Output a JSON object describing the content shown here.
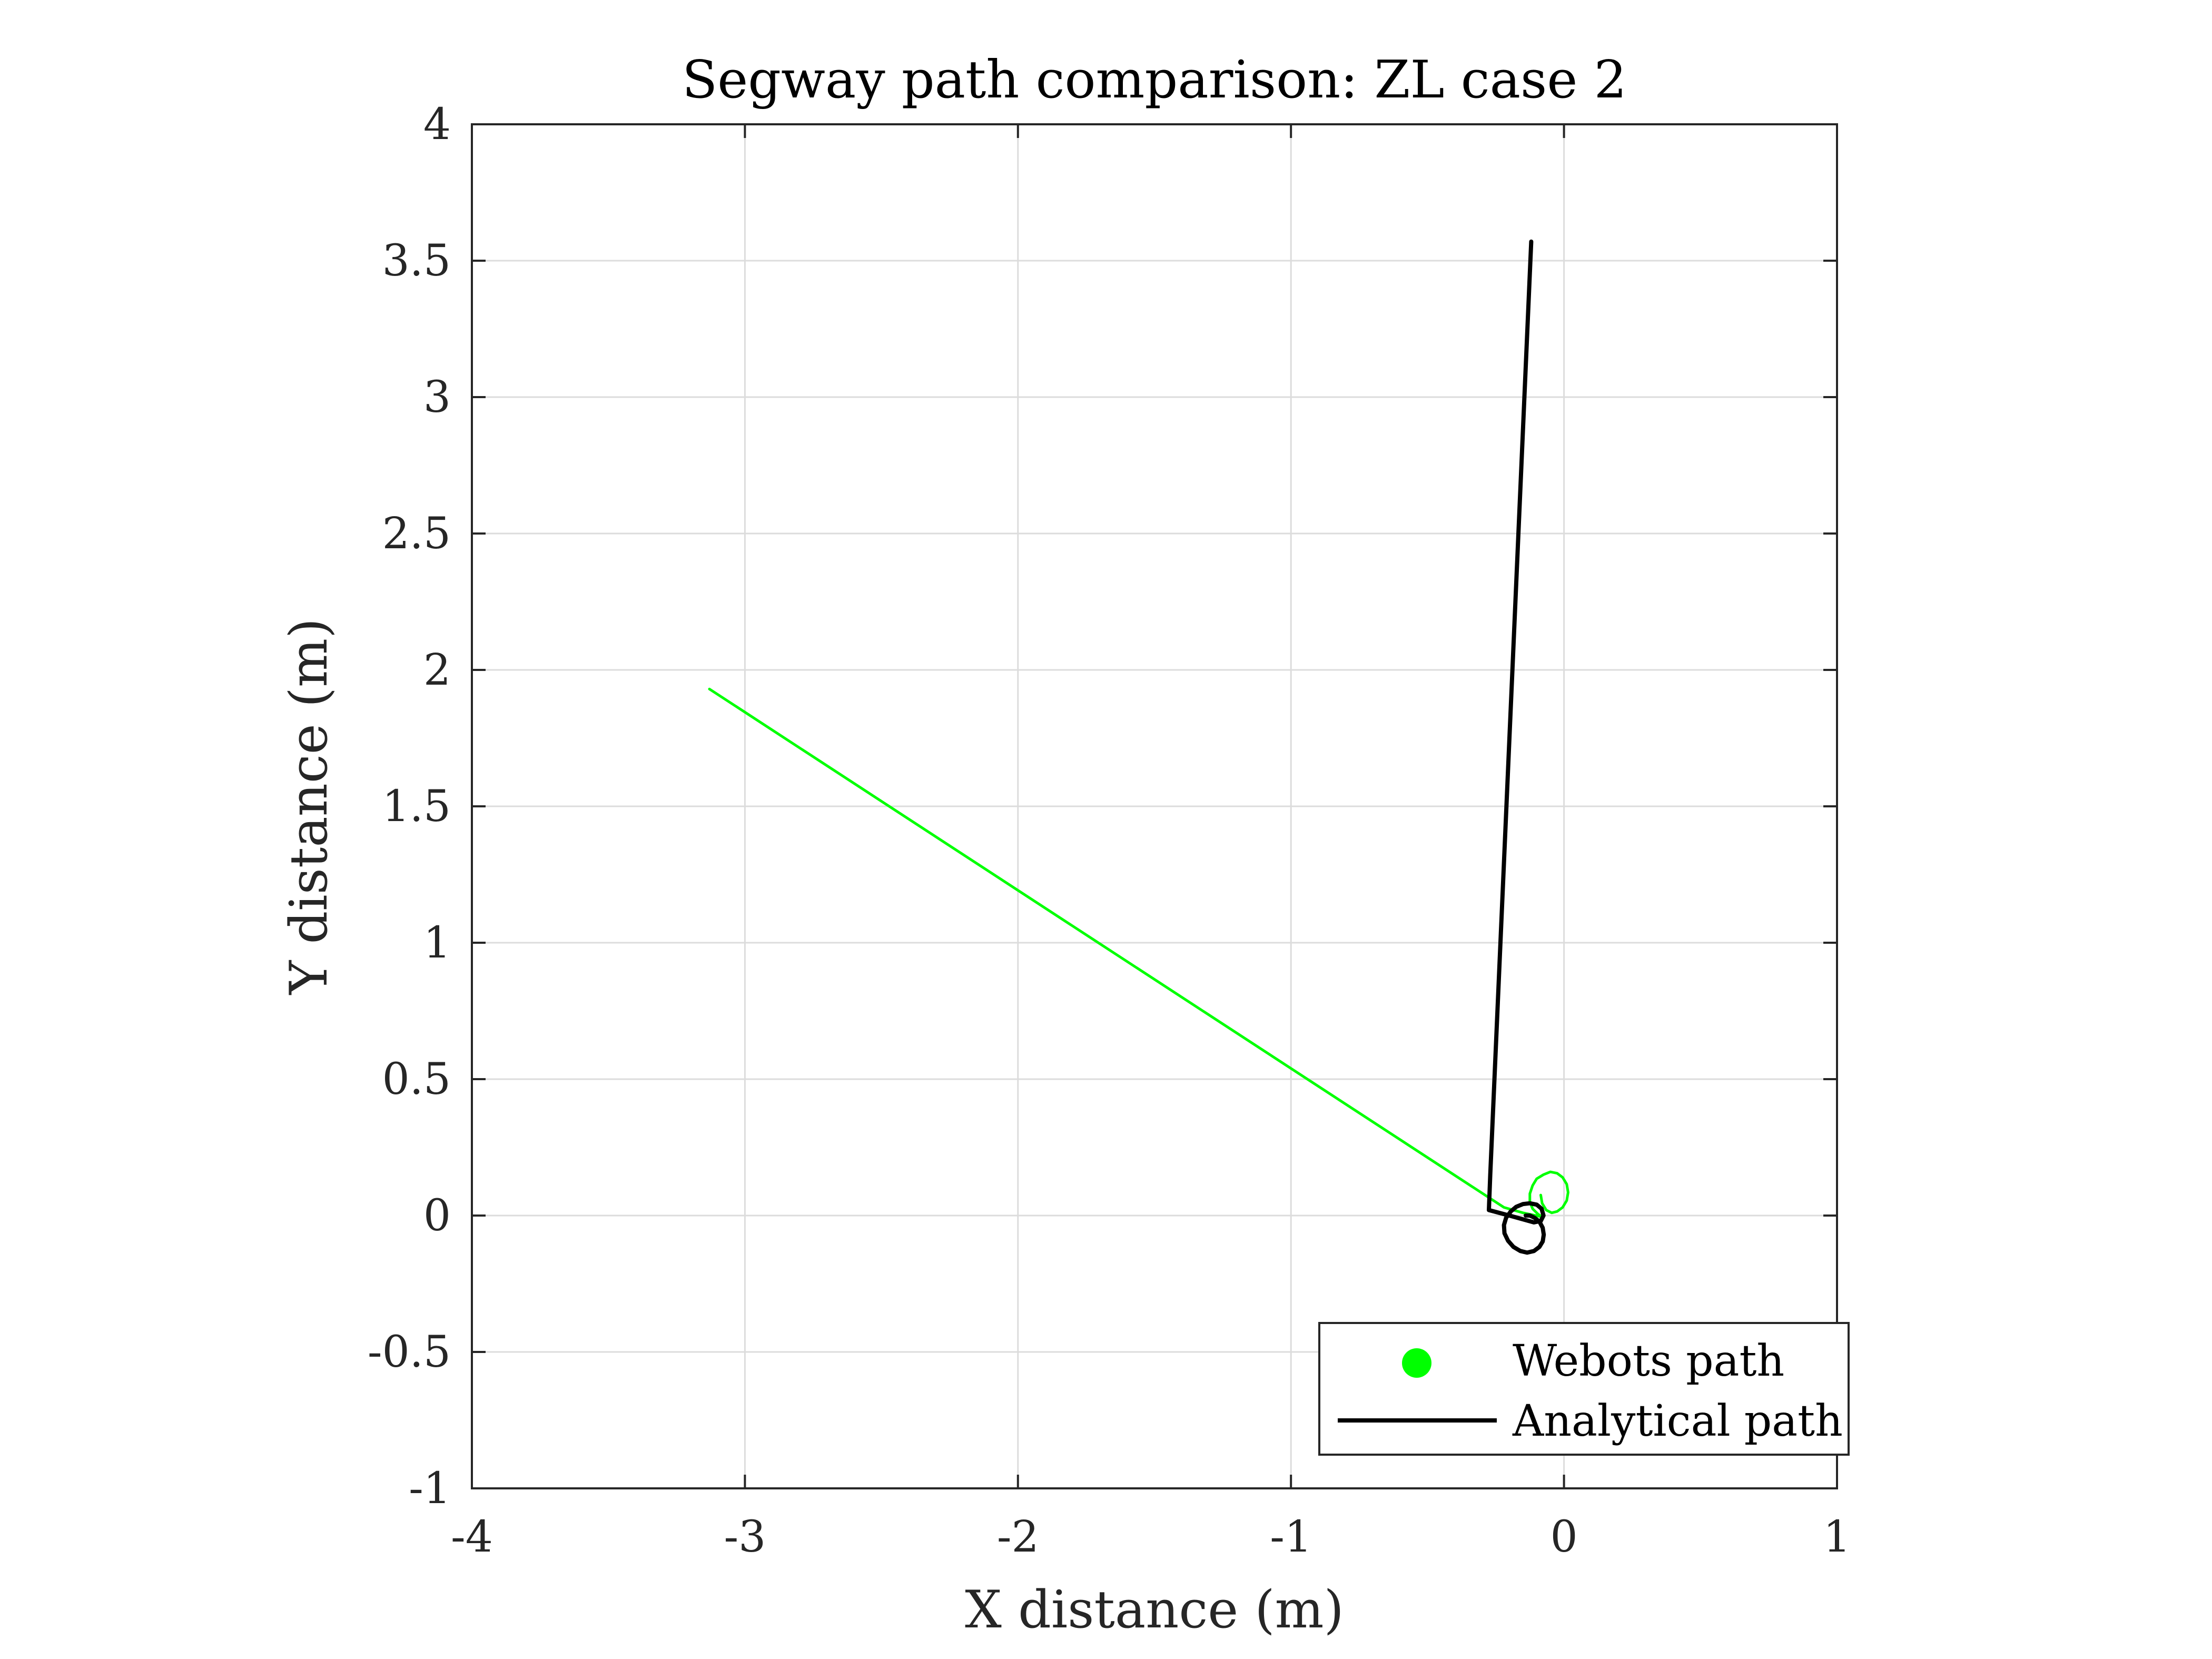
{
  "chart_data": {
    "type": "line",
    "title": "Segway path comparison: ZL case 2",
    "xlabel": "X distance (m)",
    "ylabel": "Y distance (m)",
    "xlim": [
      -4,
      1
    ],
    "ylim": [
      -1,
      4
    ],
    "xticks": [
      -4,
      -3,
      -2,
      -1,
      0,
      1
    ],
    "yticks": [
      -1,
      -0.5,
      0,
      0.5,
      1,
      1.5,
      2,
      2.5,
      3,
      3.5,
      4
    ],
    "xtick_labels": [
      "-4",
      "-3",
      "-2",
      "-1",
      "0",
      "1"
    ],
    "ytick_labels": [
      "-1",
      "-0.5",
      "0",
      "0.5",
      "1",
      "1.5",
      "2",
      "2.5",
      "3",
      "3.5",
      "4"
    ],
    "grid": true,
    "legend_position": "bottom-right",
    "series": [
      {
        "name": "Webots path",
        "color": "#00ff00",
        "marker": "circle",
        "points": [
          [
            -0.085,
            0.075
          ],
          [
            -0.08,
            0.045
          ],
          [
            -0.065,
            0.02
          ],
          [
            -0.045,
            0.01
          ],
          [
            -0.025,
            0.015
          ],
          [
            -0.005,
            0.03
          ],
          [
            0.01,
            0.055
          ],
          [
            0.015,
            0.085
          ],
          [
            0.01,
            0.115
          ],
          [
            -0.005,
            0.14
          ],
          [
            -0.025,
            0.155
          ],
          [
            -0.05,
            0.16
          ],
          [
            -0.075,
            0.15
          ],
          [
            -0.1,
            0.135
          ],
          [
            -0.115,
            0.11
          ],
          [
            -0.125,
            0.08
          ],
          [
            -0.125,
            0.05
          ],
          [
            -0.115,
            0.025
          ],
          [
            -0.095,
            0.005
          ],
          [
            -0.08,
            -0.005
          ],
          [
            -0.15,
            0.01
          ],
          [
            -0.22,
            0.03
          ],
          [
            -3.13,
            1.93
          ]
        ]
      },
      {
        "name": "Analytical path",
        "color": "#000000",
        "marker": "line",
        "points": [
          [
            -0.14,
            0.0
          ],
          [
            -0.125,
            0.0
          ],
          [
            -0.108,
            -0.008
          ],
          [
            -0.09,
            -0.022
          ],
          [
            -0.078,
            -0.045
          ],
          [
            -0.074,
            -0.07
          ],
          [
            -0.078,
            -0.095
          ],
          [
            -0.09,
            -0.115
          ],
          [
            -0.11,
            -0.13
          ],
          [
            -0.135,
            -0.136
          ],
          [
            -0.16,
            -0.13
          ],
          [
            -0.185,
            -0.115
          ],
          [
            -0.205,
            -0.092
          ],
          [
            -0.218,
            -0.065
          ],
          [
            -0.22,
            -0.035
          ],
          [
            -0.212,
            -0.008
          ],
          [
            -0.195,
            0.015
          ],
          [
            -0.175,
            0.032
          ],
          [
            -0.15,
            0.042
          ],
          [
            -0.125,
            0.045
          ],
          [
            -0.1,
            0.04
          ],
          [
            -0.082,
            0.025
          ],
          [
            -0.075,
            0.0
          ],
          [
            -0.085,
            -0.02
          ],
          [
            -0.11,
            -0.025
          ],
          [
            -0.2,
            0.0
          ],
          [
            -0.275,
            0.02
          ],
          [
            -0.27,
            0.15
          ],
          [
            -0.12,
            3.57
          ]
        ]
      }
    ]
  },
  "colors": {
    "webots": "#00ff00",
    "analytical": "#000000",
    "grid": "#dcdcdc",
    "axis": "#262626"
  }
}
